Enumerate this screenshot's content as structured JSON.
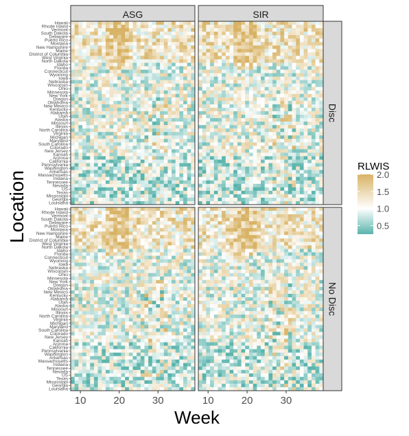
{
  "chart_data": {
    "type": "heatmap",
    "xlabel": "Week",
    "ylabel": "Location",
    "x_ticks": [
      10,
      20,
      30
    ],
    "x_range": [
      8,
      39
    ],
    "col_facets": [
      "ASG",
      "SIR"
    ],
    "row_facets": [
      "Disc",
      "No Disc"
    ],
    "locations": [
      "Hawaii",
      "Rhode Island",
      "Vermont",
      "South Dakota",
      "Delaware",
      "Puerto Rico",
      "Montana",
      "New Hampshire",
      "Maine",
      "District of Columbia",
      "West Virginia",
      "North Dakota",
      "Idaho",
      "Florida",
      "Connecticut",
      "Wyoming",
      "Iowa",
      "Nebraska",
      "Wisconsin",
      "Ohio",
      "Minnesota",
      "New York",
      "Oregon",
      "Oklahoma",
      "New Mexico",
      "Kentucky",
      "Alabama",
      "Utah",
      "Alaska",
      "Missouri",
      "Illinois",
      "North Carolina",
      "Virginia",
      "Michigan",
      "Maryland",
      "South Carolina",
      "Colorado",
      "New Jersey",
      "Kansas",
      "Arizona",
      "California",
      "Pennsylvania",
      "Washington",
      "Arkansas",
      "Massachusetts",
      "Indiana",
      "Tennessee",
      "Nevada",
      "US",
      "Texas",
      "Mississippi",
      "Georgia",
      "Louisiana"
    ],
    "legend": {
      "title": "RLWIS",
      "ticks": [
        0.5,
        1.0,
        1.5,
        2.0
      ],
      "range": [
        0.25,
        2.0
      ],
      "colors": {
        "low": "#5ab4ac",
        "mid": "#ffffff",
        "high": "#d8b365"
      }
    },
    "grid": false
  }
}
